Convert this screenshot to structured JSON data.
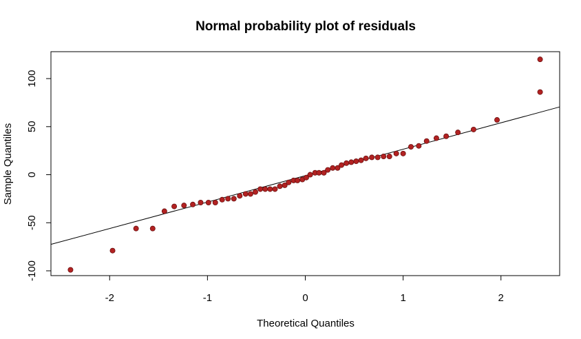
{
  "chart_data": {
    "type": "scatter",
    "title": "Normal probability plot of residuals",
    "xlabel": "Theoretical Quantiles",
    "ylabel": "Sample Quantiles",
    "xlim": [
      -2.6,
      2.6
    ],
    "ylim": [
      -105,
      128
    ],
    "x_ticks": [
      -2,
      -1,
      0,
      1,
      2
    ],
    "x_tick_labels": [
      "-2",
      "-1",
      "0",
      "1",
      "2"
    ],
    "y_ticks": [
      -100,
      -50,
      0,
      50,
      100
    ],
    "y_tick_labels": [
      "-100",
      "-50",
      "0",
      "50",
      "100"
    ],
    "grid": false,
    "point_color": "#B22222",
    "point_edge_color": "#6b1010",
    "reference_line": {
      "intercept": -1.0,
      "slope": 27.5,
      "color": "#000000"
    },
    "points": [
      {
        "x": -2.4,
        "y": -99
      },
      {
        "x": -1.97,
        "y": -79
      },
      {
        "x": -1.73,
        "y": -56
      },
      {
        "x": -1.56,
        "y": -56
      },
      {
        "x": -1.44,
        "y": -38
      },
      {
        "x": -1.34,
        "y": -33
      },
      {
        "x": -1.24,
        "y": -32
      },
      {
        "x": -1.15,
        "y": -31
      },
      {
        "x": -1.07,
        "y": -29
      },
      {
        "x": -0.99,
        "y": -29
      },
      {
        "x": -0.92,
        "y": -29
      },
      {
        "x": -0.85,
        "y": -26
      },
      {
        "x": -0.79,
        "y": -25
      },
      {
        "x": -0.73,
        "y": -25
      },
      {
        "x": -0.67,
        "y": -22
      },
      {
        "x": -0.61,
        "y": -20
      },
      {
        "x": -0.56,
        "y": -20
      },
      {
        "x": -0.51,
        "y": -18
      },
      {
        "x": -0.46,
        "y": -15
      },
      {
        "x": -0.41,
        "y": -15
      },
      {
        "x": -0.36,
        "y": -15
      },
      {
        "x": -0.31,
        "y": -15
      },
      {
        "x": -0.26,
        "y": -12
      },
      {
        "x": -0.21,
        "y": -11
      },
      {
        "x": -0.17,
        "y": -8
      },
      {
        "x": -0.12,
        "y": -6
      },
      {
        "x": -0.08,
        "y": -6
      },
      {
        "x": -0.03,
        "y": -5
      },
      {
        "x": 0.01,
        "y": -3
      },
      {
        "x": 0.05,
        "y": 0
      },
      {
        "x": 0.1,
        "y": 2
      },
      {
        "x": 0.14,
        "y": 2
      },
      {
        "x": 0.19,
        "y": 2
      },
      {
        "x": 0.23,
        "y": 5
      },
      {
        "x": 0.28,
        "y": 7
      },
      {
        "x": 0.33,
        "y": 7
      },
      {
        "x": 0.37,
        "y": 10
      },
      {
        "x": 0.42,
        "y": 12
      },
      {
        "x": 0.47,
        "y": 13
      },
      {
        "x": 0.52,
        "y": 14
      },
      {
        "x": 0.57,
        "y": 15
      },
      {
        "x": 0.62,
        "y": 17
      },
      {
        "x": 0.68,
        "y": 18
      },
      {
        "x": 0.74,
        "y": 18
      },
      {
        "x": 0.8,
        "y": 19
      },
      {
        "x": 0.86,
        "y": 19
      },
      {
        "x": 0.93,
        "y": 22
      },
      {
        "x": 1.0,
        "y": 22
      },
      {
        "x": 1.08,
        "y": 29
      },
      {
        "x": 1.16,
        "y": 30
      },
      {
        "x": 1.24,
        "y": 35
      },
      {
        "x": 1.34,
        "y": 38
      },
      {
        "x": 1.44,
        "y": 40
      },
      {
        "x": 1.56,
        "y": 44
      },
      {
        "x": 1.72,
        "y": 47
      },
      {
        "x": 1.96,
        "y": 57
      },
      {
        "x": 2.4,
        "y": 86
      },
      {
        "x": 2.4,
        "y": 120
      }
    ]
  }
}
